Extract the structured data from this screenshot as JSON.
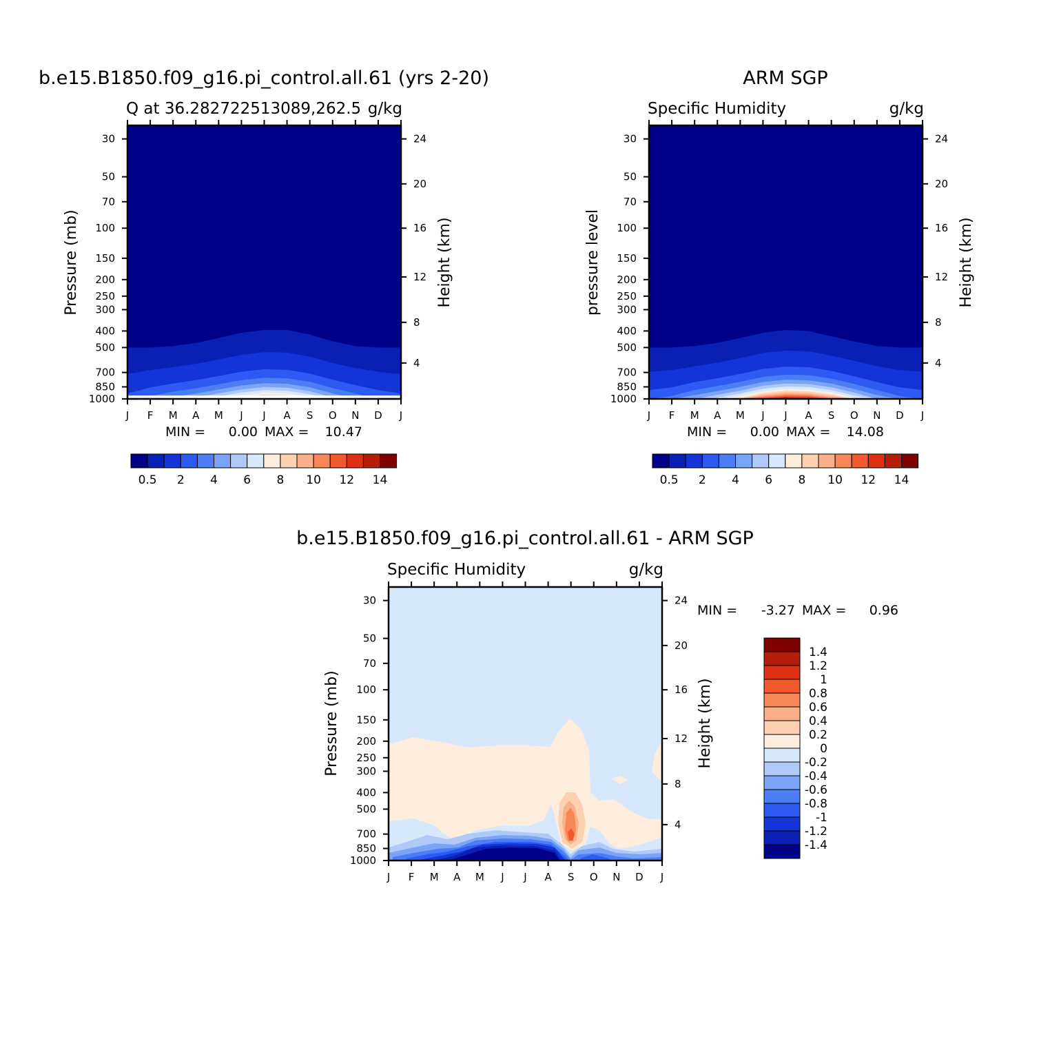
{
  "chart_data": [
    {
      "type": "heatmap",
      "title": "b.e15.B1850.f09_g16.pi_control.all.61 (yrs 2-20)",
      "subtitle_left": "Q at 36.282722513089,262.5",
      "subtitle_right": "g/kg",
      "ylabel": "Pressure (mb)",
      "ylabel_right": "Height (km)",
      "x_categories": [
        "J",
        "F",
        "M",
        "A",
        "M",
        "J",
        "J",
        "A",
        "S",
        "O",
        "N",
        "D",
        "J"
      ],
      "y_ticks": [
        "30",
        "50",
        "70",
        "100",
        "150",
        "200",
        "250",
        "300",
        "400",
        "500",
        "700",
        "850",
        "1000"
      ],
      "y_right_ticks": [
        "24",
        "20",
        "16",
        "12",
        "8",
        "4"
      ],
      "min_label": "MIN =",
      "min_value": "0.00",
      "max_label": "MAX =",
      "max_value": "10.47",
      "colorbar_orientation": "horizontal",
      "colorbar_labels": [
        "0.5",
        "2",
        "4",
        "6",
        "8",
        "10",
        "12",
        "14"
      ],
      "surface_peak_values": [
        2.5,
        3.5,
        4.5,
        5.5,
        7.0,
        9.0,
        10.5,
        10.0,
        8.0,
        5.5,
        4.0,
        3.0,
        2.5
      ],
      "moist_top_pressure": [
        500,
        500,
        490,
        470,
        440,
        410,
        395,
        395,
        420,
        460,
        490,
        500,
        500
      ]
    },
    {
      "type": "heatmap",
      "title": "ARM SGP",
      "subtitle_left": "Specific Humidity",
      "subtitle_right": "g/kg",
      "ylabel": "pressure level",
      "ylabel_right": "Height (km)",
      "x_categories": [
        "J",
        "F",
        "M",
        "A",
        "M",
        "J",
        "J",
        "A",
        "S",
        "O",
        "N",
        "D",
        "J"
      ],
      "y_ticks": [
        "30",
        "50",
        "70",
        "100",
        "150",
        "200",
        "250",
        "300",
        "400",
        "500",
        "700",
        "850",
        "1000"
      ],
      "y_right_ticks": [
        "24",
        "20",
        "16",
        "12",
        "8",
        "4"
      ],
      "min_label": "MIN =",
      "min_value": "0.00",
      "max_label": "MAX =",
      "max_value": "14.08",
      "colorbar_orientation": "horizontal",
      "colorbar_labels": [
        "0.5",
        "2",
        "4",
        "6",
        "8",
        "10",
        "12",
        "14"
      ],
      "surface_peak_values": [
        3.0,
        3.5,
        5.0,
        6.5,
        8.5,
        12.0,
        14.0,
        13.5,
        11.0,
        7.5,
        5.0,
        3.5,
        3.0
      ],
      "moist_top_pressure": [
        500,
        500,
        490,
        470,
        440,
        410,
        395,
        400,
        430,
        460,
        490,
        500,
        500
      ]
    },
    {
      "type": "heatmap",
      "title": "b.e15.B1850.f09_g16.pi_control.all.61 - ARM SGP",
      "subtitle_left": "Specific Humidity",
      "subtitle_right": "g/kg",
      "ylabel": "Pressure (mb)",
      "ylabel_right": "Height (km)",
      "x_categories": [
        "J",
        "F",
        "M",
        "A",
        "M",
        "J",
        "J",
        "A",
        "S",
        "O",
        "N",
        "D",
        "J"
      ],
      "y_ticks": [
        "30",
        "50",
        "70",
        "100",
        "150",
        "200",
        "250",
        "300",
        "400",
        "500",
        "700",
        "850",
        "1000"
      ],
      "y_right_ticks": [
        "24",
        "20",
        "16",
        "12",
        "8",
        "4"
      ],
      "min_label": "MIN =",
      "min_value": "-3.27",
      "max_label": "MAX =",
      "max_value": "0.96",
      "colorbar_orientation": "vertical",
      "colorbar_labels": [
        "1.4",
        "1.2",
        "1",
        "0.8",
        "0.6",
        "0.4",
        "0.2",
        "0",
        "-0.2",
        "-0.4",
        "-0.6",
        "-0.8",
        "-1",
        "-1.2",
        "-1.4"
      ]
    }
  ],
  "colors": {
    "moisture_scale": [
      "#00008b",
      "#0a1fb4",
      "#1434d8",
      "#2d5af2",
      "#4b7ef5",
      "#7ba4f7",
      "#afcaf9",
      "#d7e8fc",
      "#feeddd",
      "#fdd0b2",
      "#fbb08c",
      "#f88758",
      "#f2592e",
      "#dc3113",
      "#b31f08",
      "#7e0000"
    ],
    "difference_scale": [
      "#7e0000",
      "#b31f08",
      "#dc3113",
      "#f2592e",
      "#f88758",
      "#fbb08c",
      "#fdd0b2",
      "#feeddd",
      "#d7e8fc",
      "#afcaf9",
      "#7ba4f7",
      "#4b7ef5",
      "#2d5af2",
      "#1434d8",
      "#0a1fb4",
      "#00008b"
    ]
  }
}
